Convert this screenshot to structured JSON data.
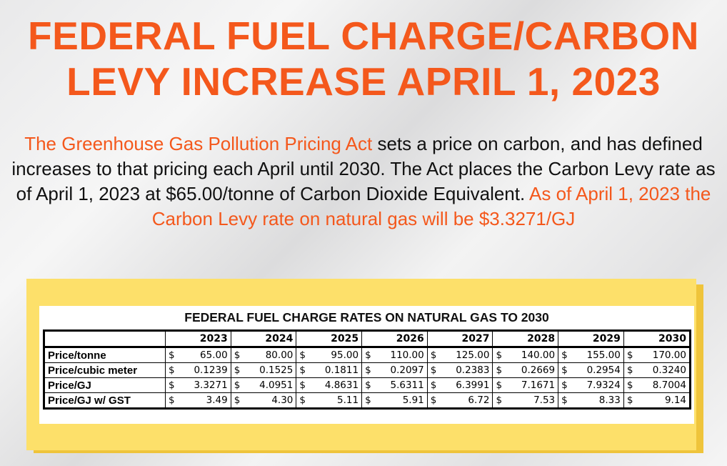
{
  "title": {
    "line1": "FEDERAL FUEL CHARGE/CARBON",
    "line2": "LEVY INCREASE APRIL 1, 2023"
  },
  "paragraph": {
    "act_name": "The Greenhouse Gas Pollution Pricing Act",
    "text1": " sets a price on carbon, and has defined increases to that pricing each April until 2030.  The Act places the Carbon Levy rate as of April 1, 2023 at $65.00/tonne of Carbon Dioxide Equivalent.  ",
    "highlight": "As of April 1, 2023 the Carbon Levy rate on natural gas will be $3.3271/GJ"
  },
  "colors": {
    "accent": "#f4581c",
    "box": "#fde06a",
    "box_shadow": "#efc43b"
  },
  "table": {
    "title": "FEDERAL FUEL CHARGE RATES ON NATURAL GAS TO 2030",
    "currency": "$",
    "years": [
      "2023",
      "2024",
      "2025",
      "2026",
      "2027",
      "2028",
      "2029",
      "2030"
    ],
    "rows": [
      {
        "label": "Price/tonne",
        "values": [
          "65.00",
          "80.00",
          "95.00",
          "110.00",
          "125.00",
          "140.00",
          "155.00",
          "170.00"
        ]
      },
      {
        "label": "Price/cubic meter",
        "values": [
          "0.1239",
          "0.1525",
          "0.1811",
          "0.2097",
          "0.2383",
          "0.2669",
          "0.2954",
          "0.3240"
        ]
      },
      {
        "label": "Price/GJ",
        "values": [
          "3.3271",
          "4.0951",
          "4.8631",
          "5.6311",
          "6.3991",
          "7.1671",
          "7.9324",
          "8.7004"
        ]
      },
      {
        "label": "Price/GJ w/ GST",
        "values": [
          "3.49",
          "4.30",
          "5.11",
          "5.91",
          "6.72",
          "7.53",
          "8.33",
          "9.14"
        ]
      }
    ]
  }
}
